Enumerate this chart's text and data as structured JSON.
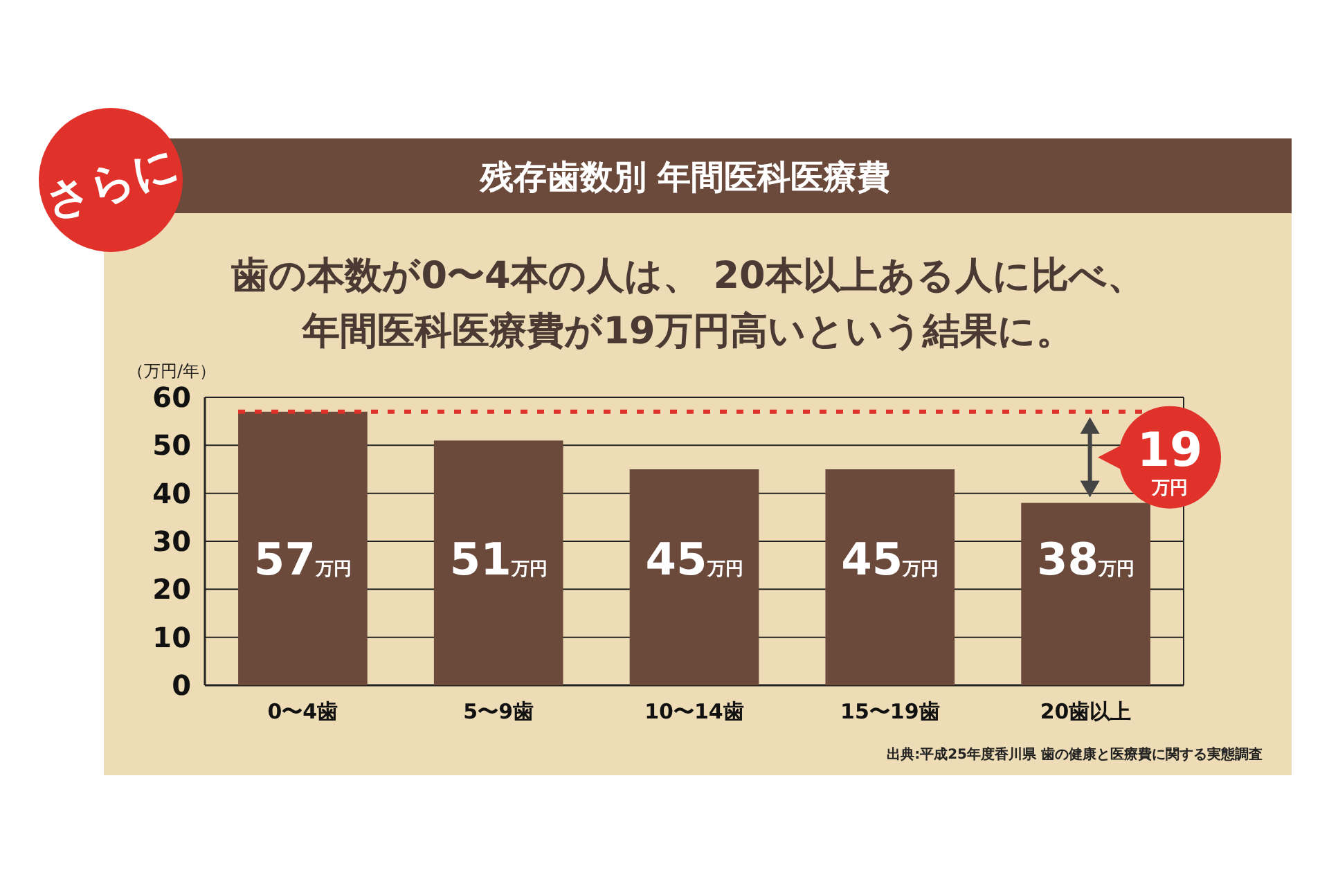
{
  "chart_data": {
    "type": "bar",
    "title": "残存歯数別 年間医科医療費",
    "subtitle": "歯の本数が0〜4本の人は、 20本以上ある人に比べ、年間医科医療費が19万円高いという結果に。",
    "ylabel": "（万円/年）",
    "categories": [
      "0〜4歯",
      "5〜9歯",
      "10〜14歯",
      "15〜19歯",
      "20歯以上"
    ],
    "values": [
      57,
      51,
      45,
      45,
      38
    ],
    "value_labels": [
      "57万円",
      "51万円",
      "45万円",
      "45万円",
      "38万円"
    ],
    "color": "#6b4a3c",
    "ylim": [
      0,
      60
    ],
    "yticks": [
      0,
      10,
      20,
      30,
      40,
      50,
      60
    ],
    "grid": "y",
    "ref_lines": [
      {
        "axis": "y",
        "value": 57,
        "color": "#e0312b",
        "line_style": "dotted"
      }
    ],
    "annotations": [
      "さらに",
      "19万円",
      "出典:平成25年度香川県 歯の健康と医療費に関する実態調査"
    ]
  }
}
